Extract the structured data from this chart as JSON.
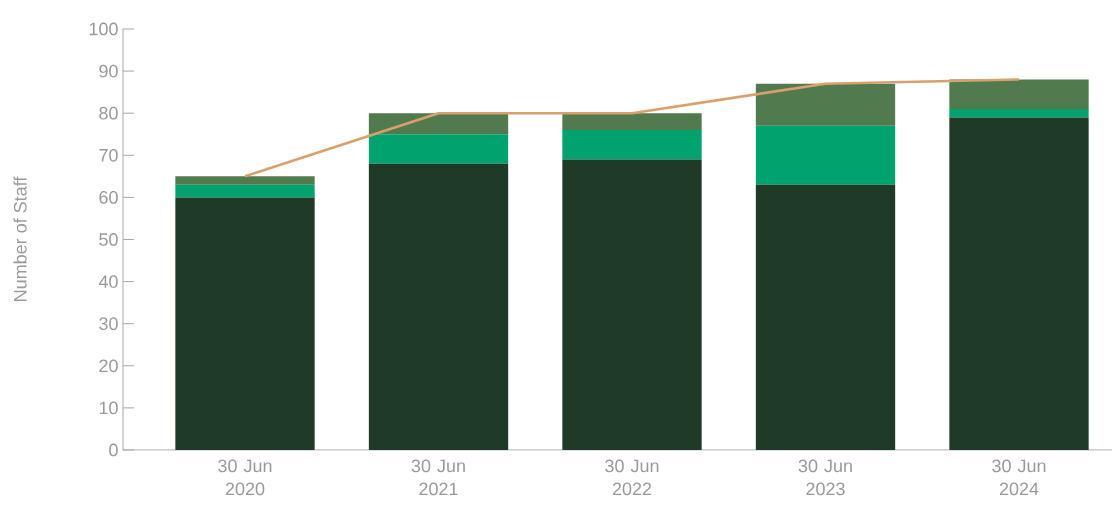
{
  "chart_data": {
    "type": "bar",
    "stacked": true,
    "ylabel": "Number of Staff",
    "categories": [
      "30 Jun 2020",
      "30 Jun 2021",
      "30 Jun 2022",
      "30 Jun 2023",
      "30 Jun 2024"
    ],
    "ylim": [
      0,
      100
    ],
    "yticks": [
      0,
      10,
      20,
      30,
      40,
      50,
      60,
      70,
      80,
      90,
      100
    ],
    "series": [
      {
        "color": "#1f3a26",
        "values": [
          60,
          68,
          69,
          63,
          79
        ]
      },
      {
        "color": "#00a36e",
        "values": [
          3,
          7,
          7,
          14,
          2
        ]
      },
      {
        "color": "#527a4f",
        "values": [
          2,
          5,
          4,
          10,
          7
        ]
      },
      {
        "type": "line",
        "color": "#d9a06b",
        "values": [
          65,
          80,
          80,
          87,
          88
        ]
      }
    ]
  }
}
